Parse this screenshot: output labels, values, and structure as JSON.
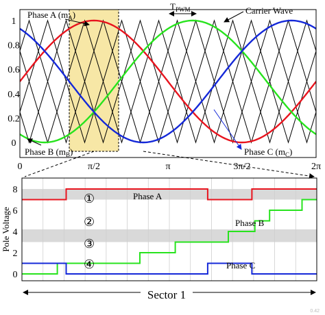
{
  "colors": {
    "phase_a": "#e8141e",
    "phase_b": "#27e31d",
    "phase_c": "#1428d8",
    "carrier": "#000000",
    "highlight": "#f7e7a6",
    "band": "#d9d9d9"
  },
  "chart_data": [
    {
      "type": "line",
      "title": "",
      "x_tick_labels": [
        "0",
        "π/2",
        "π",
        "3π/2",
        "2π"
      ],
      "xlim": [
        0,
        6.2832
      ],
      "ylim": [
        0,
        1
      ],
      "y_tick_labels": [
        "0",
        "0.2",
        "0.4",
        "0.6",
        "0.8",
        "1"
      ],
      "series": [
        {
          "name": "Phase A (m",
          "subscript": "A",
          "close": ")",
          "color": "phase_a"
        },
        {
          "name": "Phase B (m",
          "subscript": "B",
          "close": ")",
          "color": "phase_b"
        },
        {
          "name": "Phase C (m",
          "subscript": "C",
          "close": ")",
          "color": "phase_c"
        }
      ],
      "carrier_label": "Carrier Wave",
      "carrier_count": 4,
      "carrier_cycles": 16,
      "pwm_period_label": "T",
      "pwm_period_subscript": "PWM",
      "highlight_range": [
        1.0472,
        2.0944
      ]
    },
    {
      "type": "line",
      "ylabel": "Pole Voltage",
      "ylim": [
        -0.5,
        8.5
      ],
      "y_tick_labels": [
        "0",
        "2",
        "4",
        "6",
        "8"
      ],
      "xlabel": "Sector 1",
      "region_labels": [
        "①",
        "②",
        "③",
        "④"
      ],
      "series": [
        {
          "name": "Phase A",
          "color": "phase_a",
          "steps": [
            [
              0,
              7
            ],
            [
              0.15,
              8
            ],
            [
              0.63,
              7
            ],
            [
              0.78,
              8
            ],
            [
              1.0,
              8
            ]
          ]
        },
        {
          "name": "Phase B",
          "color": "phase_b",
          "steps": [
            [
              0,
              0
            ],
            [
              0.12,
              1
            ],
            [
              0.4,
              2
            ],
            [
              0.52,
              3
            ],
            [
              0.7,
              4
            ],
            [
              0.79,
              5
            ],
            [
              0.84,
              6
            ],
            [
              0.95,
              7
            ],
            [
              1.0,
              7
            ]
          ]
        },
        {
          "name": "Phase C",
          "color": "phase_c",
          "steps": [
            [
              0,
              1
            ],
            [
              0.15,
              0
            ],
            [
              0.63,
              1
            ],
            [
              0.78,
              0
            ],
            [
              1.0,
              0
            ]
          ]
        }
      ]
    }
  ],
  "footer_mark": "0.42"
}
